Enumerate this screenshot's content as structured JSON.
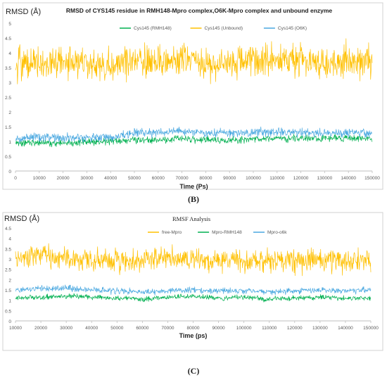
{
  "chart_data": [
    {
      "type": "line",
      "title": "RMSD of CYS145 residue in RMH148-Mpro complex,O6K-Mpro complex and unbound enzyme",
      "ylabel": "RMSD (Å)",
      "xlabel": "Time (Ps)",
      "caption": "(B)",
      "xlim": [
        0,
        150000
      ],
      "ylim": [
        0,
        5
      ],
      "xticks": [
        "0",
        "10000",
        "20000",
        "30000",
        "40000",
        "50000",
        "60000",
        "70000",
        "80000",
        "90000",
        "100000",
        "110000",
        "120000",
        "130000",
        "140000",
        "150000"
      ],
      "yticks": [
        "0",
        "0.5",
        "1",
        "1.5",
        "2",
        "2.5",
        "3",
        "3.5",
        "4",
        "4.5",
        "5"
      ],
      "grid": false,
      "legend_position": "top",
      "series": [
        {
          "name": "Cys145 (RMH148)",
          "color": "#00b050",
          "x": [
            0,
            10000,
            20000,
            30000,
            40000,
            50000,
            60000,
            70000,
            80000,
            90000,
            100000,
            110000,
            120000,
            130000,
            140000,
            150000
          ],
          "values": [
            0.95,
            0.95,
            0.97,
            0.98,
            1.0,
            1.05,
            1.05,
            1.08,
            1.05,
            1.05,
            1.08,
            1.1,
            1.1,
            1.1,
            1.12,
            1.12
          ]
        },
        {
          "name": "Cys145 (Unbound)",
          "color": "#ffc000",
          "x": [
            0,
            10000,
            20000,
            30000,
            40000,
            50000,
            60000,
            70000,
            80000,
            90000,
            100000,
            110000,
            120000,
            130000,
            140000,
            150000
          ],
          "values": [
            3.6,
            3.7,
            3.7,
            3.65,
            3.6,
            3.8,
            3.7,
            3.75,
            3.65,
            3.65,
            3.8,
            3.8,
            3.75,
            3.65,
            3.8,
            3.65
          ]
        },
        {
          "name": "Cys145 (O6K)",
          "color": "#4aa8e0",
          "x": [
            0,
            10000,
            20000,
            30000,
            40000,
            50000,
            60000,
            70000,
            80000,
            90000,
            100000,
            110000,
            120000,
            130000,
            140000,
            150000
          ],
          "values": [
            1.1,
            1.15,
            1.12,
            1.15,
            1.15,
            1.3,
            1.3,
            1.35,
            1.3,
            1.3,
            1.3,
            1.32,
            1.3,
            1.28,
            1.3,
            1.28
          ]
        }
      ]
    },
    {
      "type": "line",
      "title": "RMSF Analysis",
      "ylabel": "RMSD (Å)",
      "xlabel": "Time (ps)",
      "caption": "(C)",
      "xlim": [
        10000,
        150000
      ],
      "ylim": [
        0,
        4.5
      ],
      "xticks": [
        "10000",
        "20000",
        "30000",
        "40000",
        "50000",
        "60000",
        "70000",
        "80000",
        "90000",
        "100000",
        "110000",
        "120000",
        "130000",
        "140000",
        "150000"
      ],
      "yticks": [
        "0",
        "0.5",
        "1",
        "1.5",
        "2",
        "2.5",
        "3",
        "3.5",
        "4",
        "4.5"
      ],
      "grid": false,
      "legend_position": "top",
      "series": [
        {
          "name": "free-Mpro",
          "color": "#ffc000",
          "x": [
            10000,
            20000,
            30000,
            40000,
            50000,
            60000,
            70000,
            80000,
            90000,
            100000,
            110000,
            120000,
            130000,
            140000,
            150000
          ],
          "values": [
            3.0,
            3.3,
            3.0,
            3.0,
            2.9,
            2.9,
            3.05,
            3.0,
            2.95,
            2.95,
            2.9,
            2.95,
            2.9,
            2.9,
            2.95
          ]
        },
        {
          "name": "Mpro-RMH148",
          "color": "#00b050",
          "x": [
            10000,
            20000,
            30000,
            40000,
            50000,
            60000,
            70000,
            80000,
            90000,
            100000,
            110000,
            120000,
            130000,
            140000,
            150000
          ],
          "values": [
            1.1,
            1.15,
            1.2,
            1.15,
            1.1,
            1.05,
            1.15,
            1.2,
            1.1,
            1.15,
            1.05,
            1.1,
            1.15,
            1.1,
            1.1
          ]
        },
        {
          "name": "Mpro-o6k",
          "color": "#4aa8e0",
          "x": [
            10000,
            20000,
            30000,
            40000,
            50000,
            60000,
            70000,
            80000,
            90000,
            100000,
            110000,
            120000,
            130000,
            140000,
            150000
          ],
          "values": [
            1.5,
            1.55,
            1.6,
            1.5,
            1.45,
            1.4,
            1.45,
            1.5,
            1.45,
            1.45,
            1.4,
            1.45,
            1.5,
            1.45,
            1.5
          ]
        }
      ]
    }
  ]
}
